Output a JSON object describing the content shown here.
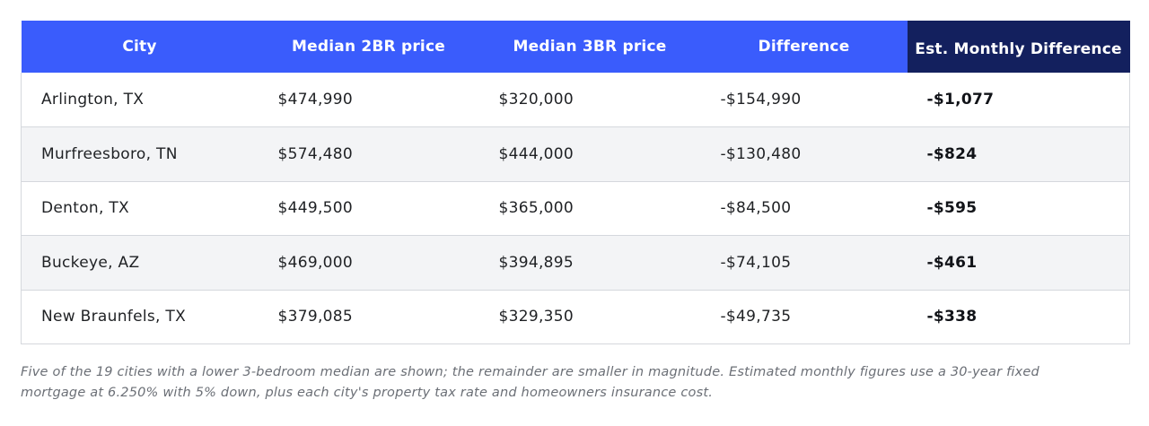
{
  "chart_data": {
    "type": "table",
    "columns": [
      "City",
      "Median 2BR price",
      "Median 3BR price",
      "Difference",
      "Est. Monthly Difference"
    ],
    "rows": [
      [
        "Arlington, TX",
        "$474,990",
        "$320,000",
        "-$154,990",
        "-$1,077"
      ],
      [
        "Murfreesboro, TN",
        "$574,480",
        "$444,000",
        "-$130,480",
        "-$824"
      ],
      [
        "Denton, TX",
        "$449,500",
        "$365,000",
        "-$84,500",
        "-$595"
      ],
      [
        "Buckeye, AZ",
        "$469,000",
        "$394,895",
        "-$74,105",
        "-$461"
      ],
      [
        "New Braunfels, TX",
        "$379,085",
        "$329,350",
        "-$49,735",
        "-$338"
      ]
    ],
    "footnote": "Five of the 19 cities with a lower 3-bedroom median are shown; the remainder are smaller in magnitude. Estimated monthly figures use a 30-year fixed mortgage at 6.250% with 5% down, plus each city's property tax rate and homeowners insurance cost."
  },
  "colors": {
    "header_bg": "#3a5cfc",
    "header_accent_bg": "#13205e",
    "stripe_bg": "#f3f4f6"
  }
}
